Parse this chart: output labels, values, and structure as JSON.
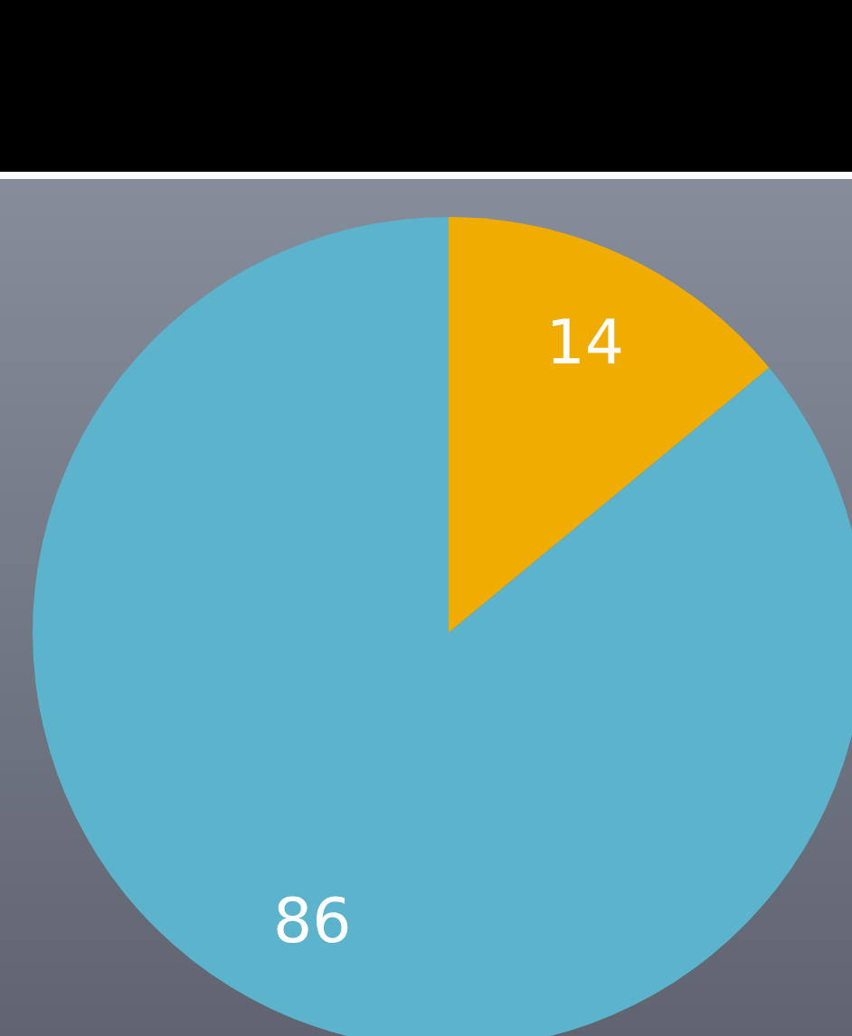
{
  "chart_data": {
    "type": "pie",
    "categories": [
      null,
      null
    ],
    "values": [
      14,
      86
    ],
    "colors": [
      "#f0ad00",
      "#5bb3cc"
    ],
    "data_labels": true,
    "legend": false
  }
}
